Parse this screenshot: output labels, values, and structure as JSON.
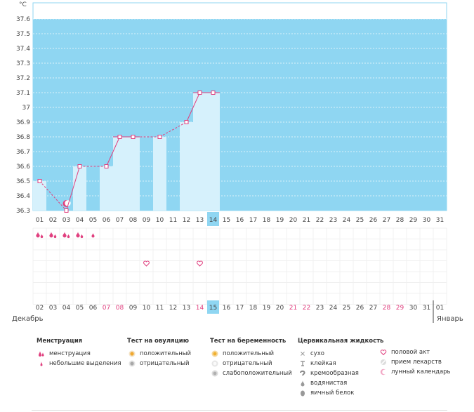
{
  "chart_data": {
    "type": "bar",
    "y_unit": "°С",
    "ylim": [
      36.3,
      37.7
    ],
    "y_ticks": [
      "37.6",
      "37.5",
      "37.4",
      "37.3",
      "37.2",
      "37.1",
      "37",
      "36.9",
      "36.8",
      "36.7",
      "36.6",
      "36.5",
      "36.4",
      "36.3"
    ],
    "cycle_days": [
      "01",
      "02",
      "03",
      "04",
      "05",
      "06",
      "07",
      "08",
      "09",
      "10",
      "11",
      "12",
      "13",
      "14",
      "15",
      "16",
      "17",
      "18",
      "19",
      "20",
      "21",
      "22",
      "23",
      "24",
      "25",
      "26",
      "27",
      "28",
      "29",
      "30",
      "31"
    ],
    "current_cycle_day": "14",
    "temperatures": [
      36.5,
      null,
      36.3,
      36.6,
      null,
      36.6,
      36.8,
      36.8,
      null,
      36.8,
      null,
      36.9,
      37.1,
      37.1,
      null,
      null,
      null,
      null,
      null,
      null,
      null,
      null,
      null,
      null,
      null,
      null,
      null,
      null,
      null,
      null,
      null
    ],
    "moon_day": "03",
    "menstruation_days": [
      "01",
      "02",
      "03",
      "04"
    ],
    "light_spotting_days": [
      "05"
    ],
    "intercourse_days": [
      "09",
      "13"
    ],
    "dates": [
      "02",
      "03",
      "04",
      "05",
      "06",
      "07",
      "08",
      "09",
      "10",
      "11",
      "12",
      "13",
      "14",
      "15",
      "16",
      "17",
      "18",
      "19",
      "20",
      "21",
      "22",
      "23",
      "24",
      "25",
      "26",
      "27",
      "28",
      "29",
      "30",
      "31",
      "01"
    ],
    "highlighted_dates": [
      "07",
      "08",
      "14",
      "21",
      "22",
      "28",
      "29"
    ],
    "current_date": "15",
    "month_start": "Декабрь",
    "month_end": "Январь"
  },
  "colors": {
    "plot_bg": "#8fd6f2",
    "bar": "#d6f1fc",
    "line": "#e0407f",
    "highlight_cell": "#8fd6f2",
    "red_date": "#e0407f"
  },
  "legend": {
    "menstruation": {
      "title": "Менструация",
      "items": [
        "менструация",
        "небольшие выделения"
      ]
    },
    "ovulation": {
      "title": "Тест на овуляцию",
      "items": [
        "положительный",
        "отрицательный"
      ]
    },
    "pregnancy": {
      "title": "Тест на беременность",
      "items": [
        "положительный",
        "отрицательный",
        "слабоположительный"
      ]
    },
    "cervical": {
      "title": "Цервикальная жидкость",
      "items": [
        "сухо",
        "клейкая",
        "кремообразная",
        "водянистая",
        "яичный белок"
      ]
    },
    "other": {
      "items": [
        "половой акт",
        "прием лекарств",
        "лунный календарь"
      ]
    }
  }
}
